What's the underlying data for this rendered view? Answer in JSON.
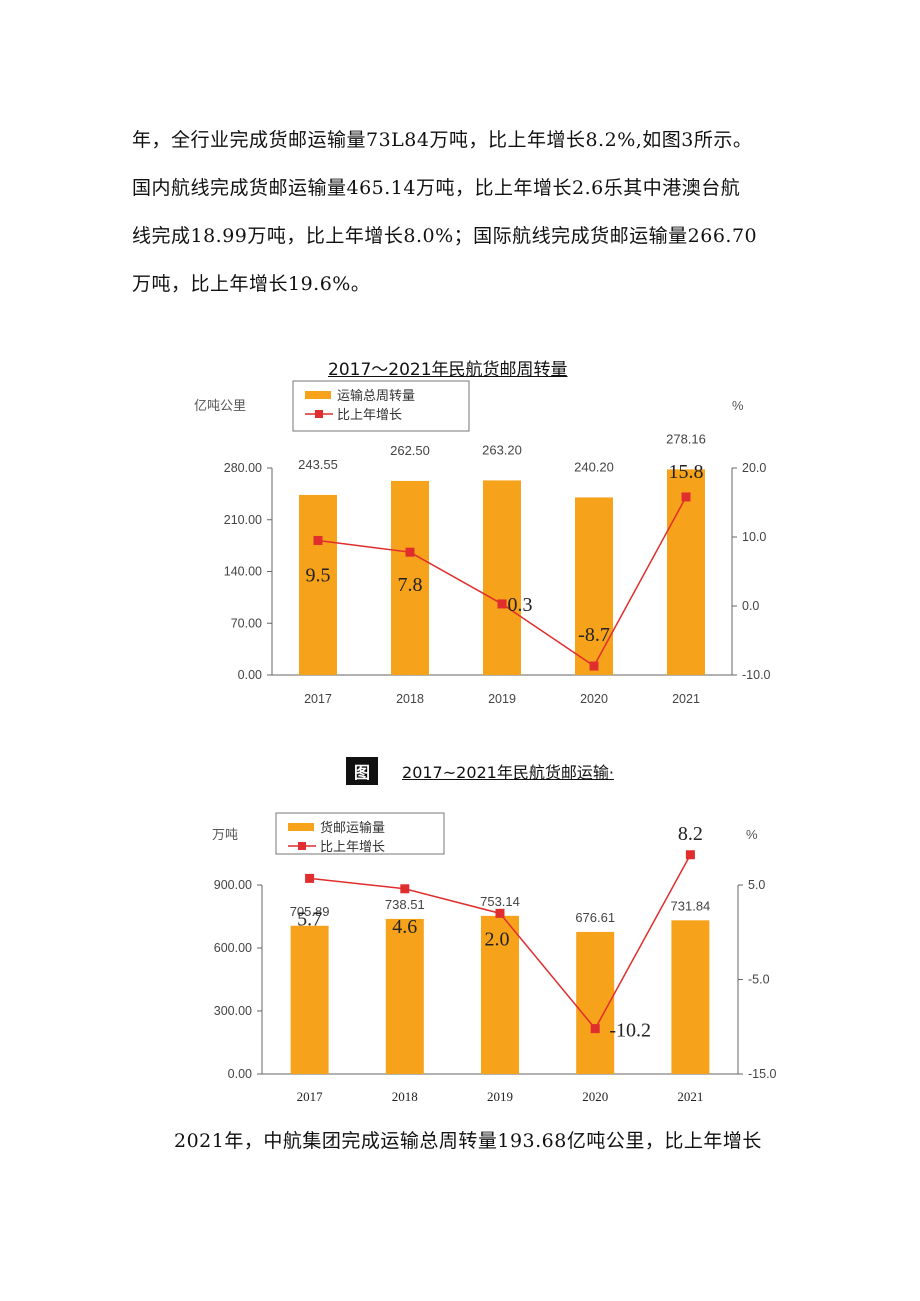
{
  "paragraph_top": [
    "年，全行业完成货邮运输量73L84万吨，比上年增长8.2%,如图3所示。",
    "国内航线完成货邮运输量465.14万吨，比上年增长2.6乐其中港澳台航",
    "线完成18.99万吨，比上年增长8.0%；国际航线完成货邮运输量266.70",
    "万吨，比上年增长19.6%。"
  ],
  "figure1": {
    "title": "2017～2021年民航货邮周转量",
    "colors": {
      "bar": "#F7A21B",
      "line": "#E02D2D",
      "axis": "#666666"
    },
    "chart_data": {
      "type": "bar",
      "categories": [
        "2017",
        "2018",
        "2019",
        "2020",
        "2021"
      ],
      "series": [
        {
          "name": "运输总周转量",
          "type": "bar",
          "axis": "left",
          "values": [
            243.55,
            262.5,
            263.2,
            240.2,
            278.16
          ],
          "labels": [
            "243.55",
            "262.50",
            "263.20",
            "240.20",
            "278.16"
          ]
        },
        {
          "name": "比上年增长",
          "type": "line",
          "axis": "right",
          "values": [
            9.5,
            7.8,
            0.3,
            -8.7,
            15.8
          ],
          "labels": [
            "9.5",
            "7.8",
            "0.3",
            "-8.7",
            "15.8"
          ]
        }
      ],
      "ylabel": "亿吨公里",
      "y2label": "%",
      "ylim": [
        0,
        280
      ],
      "y2lim": [
        -10,
        20
      ],
      "yticks": [
        "0.00",
        "70.00",
        "140.00",
        "210.00",
        "280.00"
      ],
      "y2ticks": [
        "-10.0",
        "0.0",
        "10.0",
        "20.0"
      ],
      "legend": "top-left"
    }
  },
  "figure2": {
    "badge": "图",
    "title": "2017~2021年民航货邮运输·",
    "colors": {
      "bar": "#F7A21B",
      "line": "#E02D2D",
      "axis": "#666666"
    },
    "chart_data": {
      "type": "bar",
      "categories": [
        "2017",
        "2018",
        "2019",
        "2020",
        "2021"
      ],
      "series": [
        {
          "name": "货邮运输量",
          "type": "bar",
          "axis": "left",
          "values": [
            705.89,
            738.51,
            753.14,
            676.61,
            731.84
          ],
          "labels": [
            "705.89",
            "738.51",
            "753.14",
            "676.61",
            "731.84"
          ]
        },
        {
          "name": "比上年增长",
          "type": "line",
          "axis": "right",
          "values": [
            5.7,
            4.6,
            2.0,
            -10.2,
            8.2
          ],
          "labels": [
            "5.7",
            "4.6",
            "2.0",
            "-10.2",
            "8.2"
          ]
        }
      ],
      "ylabel": "万吨",
      "y2label": "%",
      "ylim": [
        0,
        900
      ],
      "y2lim": [
        -15,
        5
      ],
      "yticks": [
        "0.00",
        "300.00",
        "600.00",
        "900.00"
      ],
      "y2ticks": [
        "-15.0",
        "-5.0",
        "5.0"
      ],
      "legend": "top-left"
    }
  },
  "paragraph_bottom": [
    "2021年，中航集团完成运输总周转量193.68亿吨公里，比上年增长"
  ]
}
